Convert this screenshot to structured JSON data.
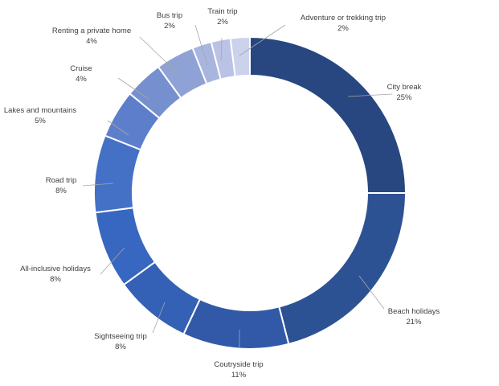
{
  "chart_data": {
    "type": "pie",
    "variant": "doughnut",
    "title": "",
    "legend": "none",
    "slices": [
      {
        "label": "City break",
        "value": 25,
        "pct_label": "25%",
        "color": "#284680"
      },
      {
        "label": "Beach holidays",
        "value": 21,
        "pct_label": "21%",
        "color": "#2d5294"
      },
      {
        "label": "Coutryside trip",
        "value": 11,
        "pct_label": "11%",
        "color": "#3159a8"
      },
      {
        "label": "Sightseeing trip",
        "value": 8,
        "pct_label": "8%",
        "color": "#3461b6"
      },
      {
        "label": "All-inclusive holidays",
        "value": 8,
        "pct_label": "8%",
        "color": "#3767c0"
      },
      {
        "label": "Road trip",
        "value": 8,
        "pct_label": "8%",
        "color": "#4471c5"
      },
      {
        "label": "Lakes and mountains",
        "value": 5,
        "pct_label": "5%",
        "color": "#5d7fcb"
      },
      {
        "label": "Cruise",
        "value": 4,
        "pct_label": "4%",
        "color": "#768fcf"
      },
      {
        "label": "Renting a private home",
        "value": 4,
        "pct_label": "4%",
        "color": "#8fa2d6"
      },
      {
        "label": "Bus trip",
        "value": 2,
        "pct_label": "2%",
        "color": "#a8b5de"
      },
      {
        "label": "Train trip",
        "value": 2,
        "pct_label": "2%",
        "color": "#bac3e5"
      },
      {
        "label": "Adventure or trekking trip",
        "value": 2,
        "pct_label": "2%",
        "color": "#cbd2ec"
      }
    ]
  }
}
